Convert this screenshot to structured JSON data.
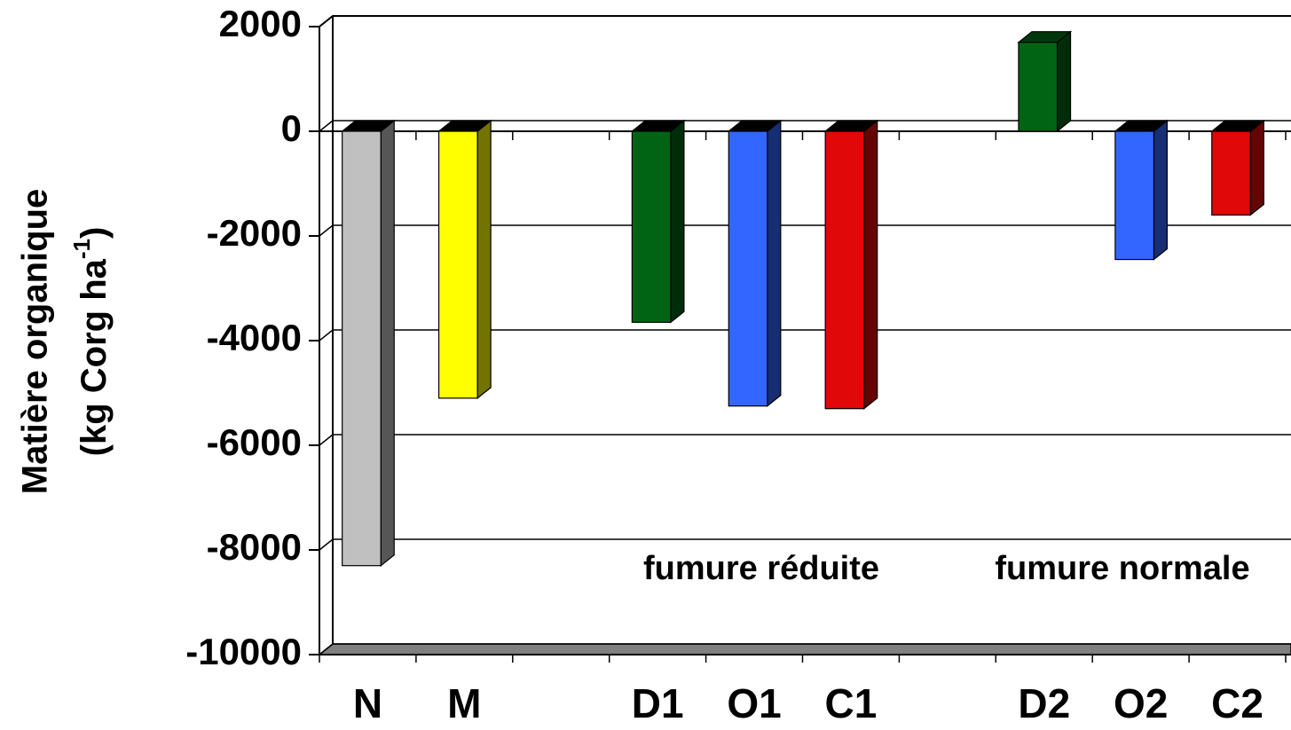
{
  "chart_data": {
    "type": "bar3d",
    "ylabel": {
      "line1": "Matière organique",
      "line2": "(kg Corg ha",
      "superscript": "-1",
      "line2_end": ")"
    },
    "categories": [
      "N",
      "M",
      null,
      "D1",
      "O1",
      "C1",
      null,
      "D2",
      "O2",
      "C2"
    ],
    "values": [
      -8300,
      -5100,
      null,
      -3650,
      -5250,
      -5300,
      null,
      1700,
      -2450,
      -1600
    ],
    "colors": [
      "#c0c0c0",
      "#ffff00",
      null,
      "#006414",
      "#3366ff",
      "#e00808",
      null,
      "#006414",
      "#3366ff",
      "#e00808"
    ],
    "ylim": [
      -10000,
      2000
    ],
    "yticks": [
      -10000,
      -8000,
      -6000,
      -4000,
      -2000,
      0,
      2000
    ],
    "grid": true,
    "annotations": [
      "fumure réduite",
      "fumure normale"
    ]
  }
}
